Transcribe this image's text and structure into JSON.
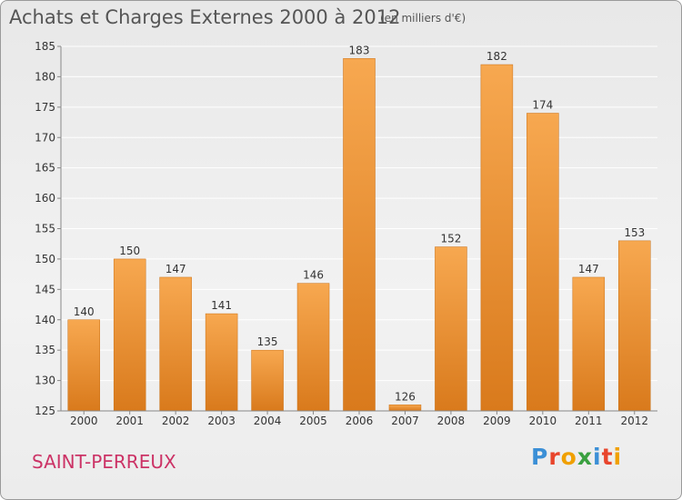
{
  "title": "Achats et Charges Externes 2000 à 2012",
  "subtitle": "(en milliers d'€)",
  "place": "SAINT-PERREUX",
  "logo": "Proxiti",
  "chart_data": {
    "type": "bar",
    "categories": [
      "2000",
      "2001",
      "2002",
      "2003",
      "2004",
      "2005",
      "2006",
      "2007",
      "2008",
      "2009",
      "2010",
      "2011",
      "2012"
    ],
    "values": [
      140,
      150,
      147,
      141,
      135,
      146,
      183,
      126,
      152,
      182,
      174,
      147,
      153
    ],
    "ylim": [
      125,
      185
    ],
    "yticks": [
      125,
      130,
      135,
      140,
      145,
      150,
      155,
      160,
      165,
      170,
      175,
      180,
      185
    ],
    "grid": true,
    "colors": {
      "bar_light": "#f7a850",
      "bar_dark": "#d97a1c",
      "grid": "#ffffff"
    }
  }
}
